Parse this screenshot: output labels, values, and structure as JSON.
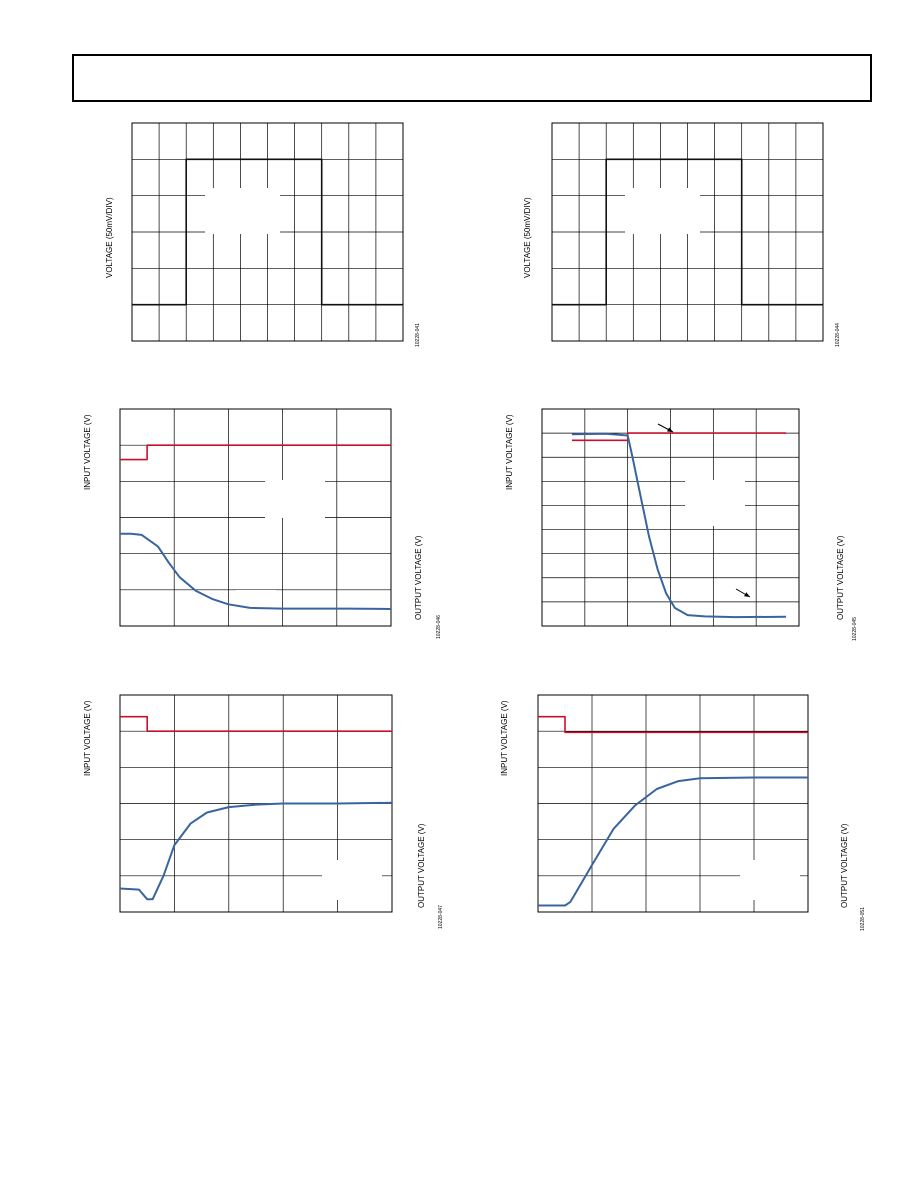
{
  "colors": {
    "grid": "#000000",
    "trace_black": "#111111",
    "trace_red": "#c8102e",
    "trace_blue": "#3a64a0"
  },
  "chart_data": [
    {
      "type": "line",
      "title": "",
      "xlabel": "",
      "ylabel": "VOLTAGE (50mV/DIV)",
      "fig_id": "10228-041",
      "grid": true,
      "xlim": [
        0,
        10
      ],
      "ylim": [
        0,
        6
      ],
      "series": [
        {
          "x": [
            0,
            2.0,
            2.0,
            7.0,
            7.0,
            10
          ],
          "values": [
            1.0,
            1.0,
            5.0,
            5.0,
            1.0,
            1.0
          ]
        }
      ]
    },
    {
      "type": "line",
      "title": "",
      "xlabel": "",
      "ylabel": "VOLTAGE (50mV/DIV)",
      "fig_id": "10228-044",
      "grid": true,
      "xlim": [
        0,
        10
      ],
      "ylim": [
        0,
        6
      ],
      "series": [
        {
          "x": [
            0,
            2.0,
            2.0,
            7.0,
            7.0,
            10
          ],
          "values": [
            1.0,
            1.0,
            5.0,
            5.0,
            1.0,
            1.0
          ]
        }
      ]
    },
    {
      "type": "line",
      "title": "",
      "xlabel": "",
      "ylabel": "INPUT VOLTAGE (V)",
      "y2label": "OUTPUT VOLTAGE (V)",
      "fig_id": "10228-046",
      "grid": true,
      "xlim": [
        0,
        5
      ],
      "ylim": [
        0,
        6
      ],
      "series": [
        {
          "x": [
            0,
            0.5,
            0.5,
            5
          ],
          "values": [
            4.6,
            4.6,
            5.0,
            5.0
          ]
        },
        {
          "x": [
            0,
            0.2,
            0.4,
            0.7,
            0.9,
            1.1,
            1.4,
            1.7,
            2.0,
            2.4,
            3.0,
            3.6,
            4.2,
            5
          ],
          "values": [
            2.55,
            2.55,
            2.52,
            2.2,
            1.75,
            1.35,
            0.97,
            0.75,
            0.6,
            0.5,
            0.48,
            0.48,
            0.48,
            0.47
          ]
        }
      ]
    },
    {
      "type": "line",
      "title": "",
      "xlabel": "",
      "ylabel": "INPUT VOLTAGE (V)",
      "y2label": "OUTPUT VOLTAGE (V)",
      "fig_id": "10228-045",
      "grid": true,
      "xlim": [
        0,
        6
      ],
      "ylim": [
        0,
        9
      ],
      "series": [
        {
          "x": [
            0.7,
            2.0,
            2.0,
            5.7
          ],
          "values": [
            7.7,
            7.7,
            8.0,
            8.0
          ]
        },
        {
          "x": [
            0.7,
            1.5,
            2.0,
            2.1,
            2.3,
            2.5,
            2.7,
            2.9,
            3.1,
            3.4,
            3.8,
            4.5,
            5.7
          ],
          "values": [
            7.95,
            7.97,
            7.9,
            7.1,
            5.4,
            3.7,
            2.35,
            1.35,
            0.75,
            0.45,
            0.4,
            0.37,
            0.38
          ]
        }
      ]
    },
    {
      "type": "line",
      "title": "",
      "xlabel": "",
      "ylabel": "INPUT VOLTAGE (V)",
      "y2label": "OUTPUT VOLTAGE (V)",
      "fig_id": "10228-047",
      "grid": true,
      "xlim": [
        0,
        5
      ],
      "ylim": [
        0,
        6
      ],
      "series": [
        {
          "x": [
            0,
            0.5,
            0.5,
            5
          ],
          "values": [
            5.4,
            5.4,
            5.0,
            5.0
          ]
        },
        {
          "x": [
            0,
            0.35,
            0.5,
            0.6,
            0.8,
            1.0,
            1.3,
            1.6,
            2.0,
            2.5,
            3.0,
            4.0,
            5
          ],
          "values": [
            0.65,
            0.62,
            0.35,
            0.35,
            1.0,
            1.85,
            2.45,
            2.75,
            2.9,
            2.97,
            3.0,
            3.0,
            3.02
          ]
        }
      ]
    },
    {
      "type": "line",
      "title": "",
      "xlabel": "",
      "ylabel": "INPUT VOLTAGE (V)",
      "y2label": "OUTPUT VOLTAGE (V)",
      "fig_id": "10228-051",
      "grid": true,
      "xlim": [
        0,
        5
      ],
      "ylim": [
        0,
        6
      ],
      "series": [
        {
          "x": [
            0,
            0.5,
            0.5,
            5
          ],
          "values": [
            5.4,
            5.4,
            4.97,
            4.97
          ]
        },
        {
          "x": [
            0,
            0.5,
            0.6,
            1.0,
            1.4,
            1.8,
            2.2,
            2.6,
            3.0,
            4.0,
            5
          ],
          "values": [
            0.18,
            0.18,
            0.28,
            1.3,
            2.3,
            2.95,
            3.4,
            3.62,
            3.7,
            3.72,
            3.72
          ]
        }
      ]
    }
  ]
}
